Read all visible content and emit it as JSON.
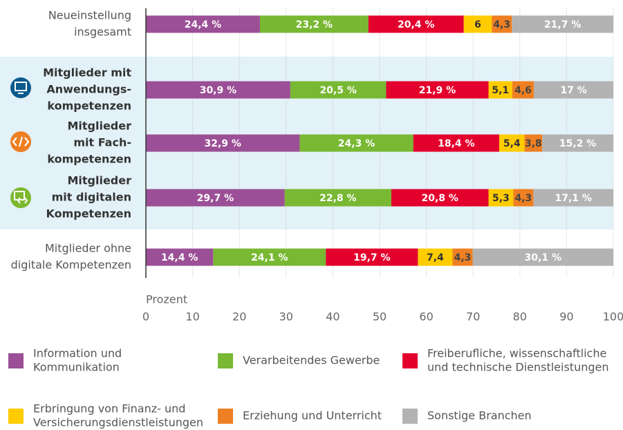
{
  "chart_data": {
    "type": "stacked-bar-horizontal",
    "categories": [
      [
        "Neueinstellung",
        "insgesamt"
      ],
      [
        "Mitglieder mit",
        "Anwendungs-",
        "kompetenzen"
      ],
      [
        "Mitglieder",
        "mit Fach-",
        "kompetenzen"
      ],
      [
        "Mitglieder",
        "mit digitalen",
        "Kompetenzen"
      ],
      [
        "Mitglieder ohne",
        "digitale Kompetenzen"
      ]
    ],
    "highlight": [
      false,
      true,
      true,
      true,
      false
    ],
    "series": [
      {
        "name": [
          "Information und",
          "Kommunikation"
        ],
        "color": "#9b4f96",
        "label_color": "#ffffff",
        "values": [
          24.4,
          30.9,
          32.9,
          29.7,
          14.4
        ],
        "value_labels": [
          "24,4 %",
          "30,9 %",
          "32,9 %",
          "29,7 %",
          "14,4 %"
        ]
      },
      {
        "name": [
          "Verarbeitendes Gewerbe"
        ],
        "color": "#78b833",
        "label_color": "#ffffff",
        "values": [
          23.2,
          20.5,
          24.3,
          22.8,
          24.1
        ],
        "value_labels": [
          "23,2 %",
          "20,5 %",
          "24,3 %",
          "22,8 %",
          "24,1 %"
        ]
      },
      {
        "name": [
          "Freiberufliche, wissenschaftliche",
          "und technische Dienstleistungen"
        ],
        "color": "#e3002d",
        "label_color": "#ffffff",
        "values": [
          20.4,
          21.9,
          18.4,
          20.8,
          19.7
        ],
        "value_labels": [
          "20,4 %",
          "21,9 %",
          "18,4 %",
          "20,8 %",
          "19,7 %"
        ]
      },
      {
        "name": [
          "Erbringung von Finanz- und",
          "Versicherungsdienstleistungen"
        ],
        "color": "#ffcc00",
        "label_color": "#333333",
        "values": [
          6,
          5.1,
          5.4,
          5.3,
          7.4
        ],
        "value_labels": [
          "6",
          "5,1",
          "5,4",
          "5,3",
          "7,4"
        ]
      },
      {
        "name": [
          "Erziehung und Unterricht"
        ],
        "color": "#ee7f22",
        "label_color": "#444444",
        "values": [
          4.3,
          4.6,
          3.8,
          4.3,
          4.3
        ],
        "value_labels": [
          "4,3",
          "4,6",
          "3,8",
          "4,3",
          "4,3"
        ]
      },
      {
        "name": [
          "Sonstige Branchen"
        ],
        "color": "#b3b3b3",
        "label_color": "#ffffff",
        "values": [
          21.7,
          17,
          15.2,
          17.1,
          30.1
        ],
        "value_labels": [
          "21,7 %",
          "17 %",
          "15,2 %",
          "17,1 %",
          "30,1 %"
        ]
      }
    ],
    "x_label": "Prozent",
    "xlim": [
      0,
      100
    ],
    "xticks": [
      0,
      10,
      20,
      30,
      40,
      50,
      60,
      70,
      80,
      90,
      100
    ],
    "grid": true
  }
}
